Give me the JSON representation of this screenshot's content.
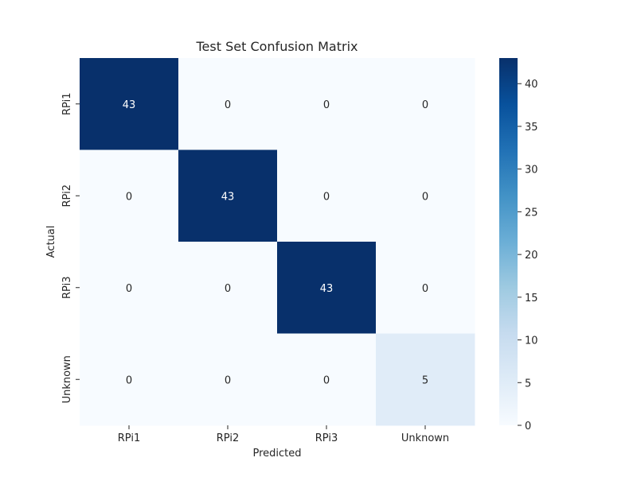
{
  "chart_data": {
    "type": "heatmap",
    "title": "Test Set Confusion Matrix",
    "xlabel": "Predicted",
    "ylabel": "Actual",
    "x_categories": [
      "RPi1",
      "RPi2",
      "RPi3",
      "Unknown"
    ],
    "y_categories": [
      "RPi1",
      "RPi2",
      "RPi3",
      "Unknown"
    ],
    "values": [
      [
        43,
        0,
        0,
        0
      ],
      [
        0,
        43,
        0,
        0
      ],
      [
        0,
        0,
        43,
        0
      ],
      [
        0,
        0,
        0,
        5
      ]
    ],
    "colorbar": {
      "min": 0,
      "max": 43,
      "ticks": [
        0,
        5,
        10,
        15,
        20,
        25,
        30,
        35,
        40
      ],
      "colormap": "Blues"
    }
  }
}
